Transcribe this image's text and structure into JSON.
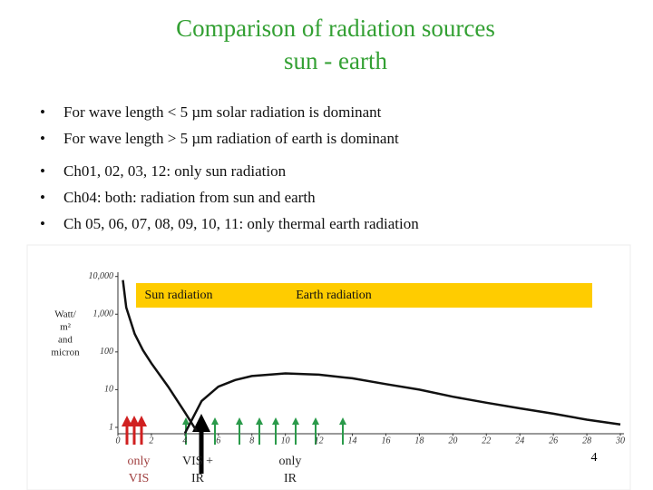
{
  "slide": {
    "title": [
      "Comparison of radiation sources",
      "sun - earth"
    ],
    "bullets": [
      [
        "For wave length < 5 µm solar radiation is dominant",
        "For wave length  > 5 µm radiation of earth is dominant"
      ],
      [
        "Ch01, 02, 03, 12: only sun radiation",
        "Ch04: both: radiation from sun and earth",
        "Ch 05, 06, 07, 08, 09, 10, 11:  only thermal earth radiation"
      ]
    ],
    "page_number": "4"
  },
  "chart_data": {
    "type": "line",
    "log_scale": true,
    "ylabel": [
      "Watt/",
      "m²",
      "and",
      "micron"
    ],
    "annotations": [
      "Sun radiation",
      "Earth radiation"
    ],
    "channel_labels": [
      [
        "only",
        "VIS"
      ],
      [
        "VIS +",
        "IR"
      ],
      [
        "only",
        "IR"
      ]
    ],
    "xlim": [
      0,
      30
    ],
    "xticks": [
      0,
      2,
      4,
      6,
      8,
      10,
      12,
      14,
      16,
      18,
      20,
      22,
      24,
      26,
      28,
      30
    ],
    "ylim": [
      0.7,
      12000
    ],
    "yticks": [
      {
        "value": 10000,
        "label": "10,000"
      },
      {
        "value": 1000,
        "label": "1,000"
      },
      100,
      10,
      1
    ],
    "series": [
      {
        "name": "Sun radiation",
        "color": "#111111",
        "x": [
          0.3,
          0.5,
          1,
          1.5,
          2,
          3,
          4,
          4.7
        ],
        "values": [
          8000,
          1500,
          300,
          110,
          50,
          12,
          2.5,
          0.8
        ]
      },
      {
        "name": "Earth radiation",
        "color": "#111111",
        "x": [
          4,
          5,
          6,
          7,
          8,
          10,
          12,
          14,
          16,
          18,
          20,
          22,
          24,
          26,
          28,
          30
        ],
        "values": [
          0.7,
          5,
          12,
          18,
          23,
          27,
          25,
          20,
          14,
          10,
          6.5,
          4.5,
          3.2,
          2.3,
          1.6,
          1.2
        ]
      }
    ]
  }
}
